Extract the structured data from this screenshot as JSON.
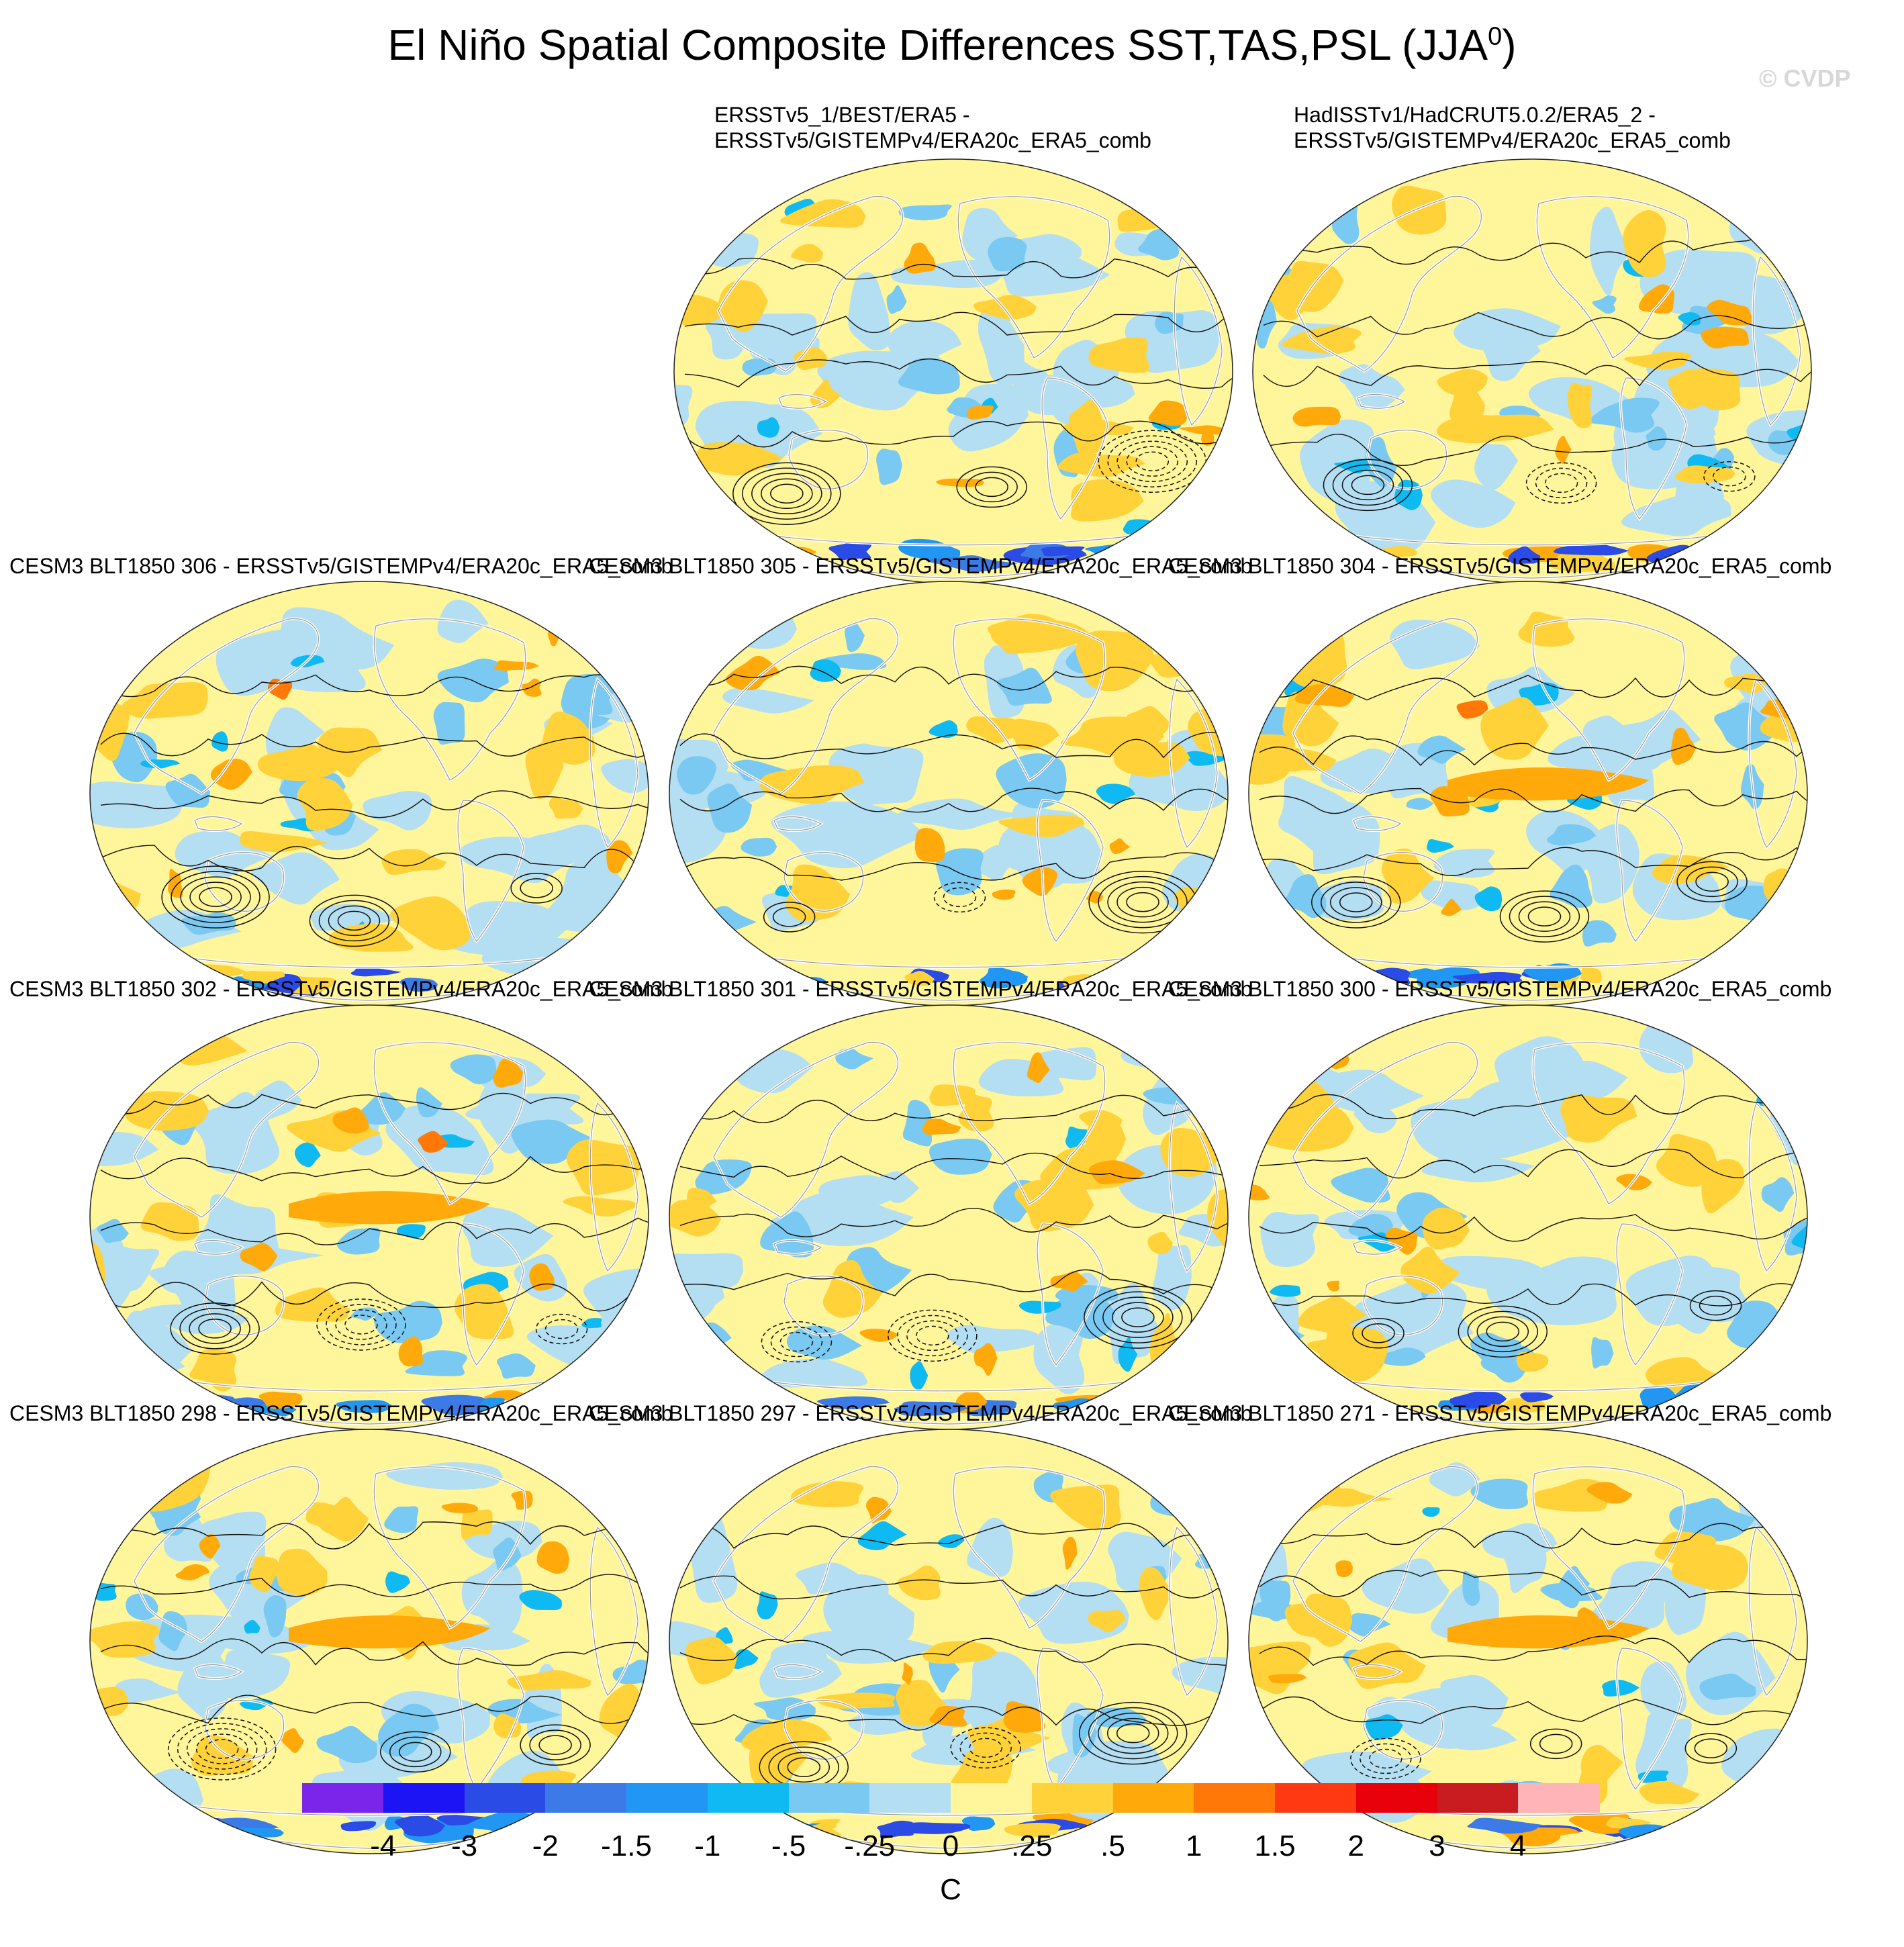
{
  "title": "El Niño Spatial Composite Differences SST,TAS,PSL (JJA",
  "title_sup": "0",
  "title_close": ")",
  "watermark": "© CVDP",
  "panels": [
    {
      "line1": "ERSSTv5_1/BEST/ERA5 -",
      "line2": "ERSSTv5/GISTEMPv4/ERA20c_ERA5_comb"
    },
    {
      "line1": "HadISSTv1/HadCRUT5.0.2/ERA5_2 -",
      "line2": "ERSSTv5/GISTEMPv4/ERA20c_ERA5_comb"
    },
    {
      "line1": "CESM3 BLT1850 306 - ERSSTv5/GISTEMPv4/ERA20c_ERA5_comb"
    },
    {
      "line1": "CESM3 BLT1850 305 - ERSSTv5/GISTEMPv4/ERA20c_ERA5_comb"
    },
    {
      "line1": "CESM3 BLT1850 304 - ERSSTv5/GISTEMPv4/ERA20c_ERA5_comb"
    },
    {
      "line1": "CESM3 BLT1850 302 - ERSSTv5/GISTEMPv4/ERA20c_ERA5_comb"
    },
    {
      "line1": "CESM3 BLT1850 301 - ERSSTv5/GISTEMPv4/ERA20c_ERA5_comb"
    },
    {
      "line1": "CESM3 BLT1850 300 - ERSSTv5/GISTEMPv4/ERA20c_ERA5_comb"
    },
    {
      "line1": "CESM3 BLT1850 298 - ERSSTv5/GISTEMPv4/ERA20c_ERA5_comb"
    },
    {
      "line1": "CESM3 BLT1850 297 - ERSSTv5/GISTEMPv4/ERA20c_ERA5_comb"
    },
    {
      "line1": "CESM3 BLT1850 271 - ERSSTv5/GISTEMPv4/ERA20c_ERA5_comb"
    }
  ],
  "colorbar": {
    "labels": [
      "-4",
      "-3",
      "-2",
      "-1.5",
      "-1",
      "-.5",
      "-.25",
      "0",
      ".25",
      ".5",
      "1",
      "1.5",
      "2",
      "3",
      "4"
    ],
    "colors": [
      "#7b25ea",
      "#1c14f5",
      "#2a4be6",
      "#3c7ae8",
      "#2196f3",
      "#0fbaf2",
      "#79c9f2",
      "#b4def2",
      "#fff59a",
      "#ffd23a",
      "#ffa90a",
      "#ff7808",
      "#ff3a12",
      "#e8000a",
      "#c81c20",
      "#ffb4b8"
    ],
    "units": "C"
  }
}
